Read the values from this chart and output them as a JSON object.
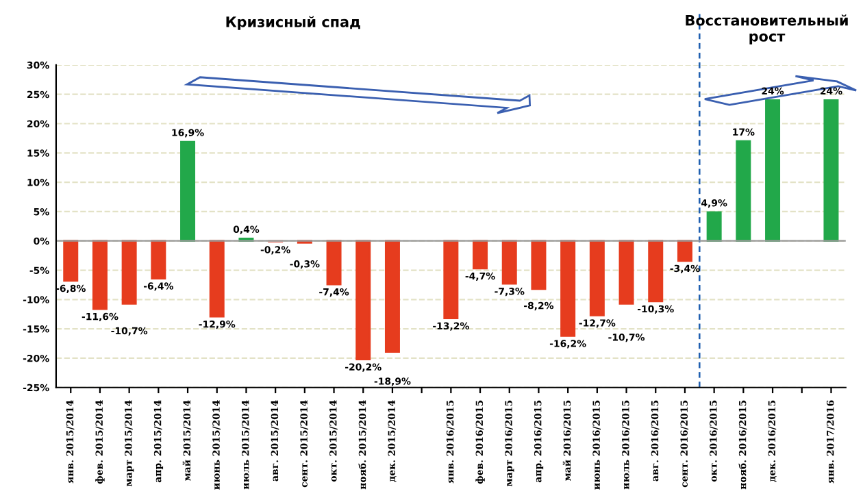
{
  "chart_data": {
    "type": "bar",
    "categories": [
      "янв. 2015/2014",
      "фев. 2015/2014",
      "март 2015/2014",
      "апр. 2015/2014",
      "май 2015/2014",
      "июнь 2015/2014",
      "июль 2015/2014",
      "авг. 2015/2014",
      "сент. 2015/2014",
      "окт. 2015/2014",
      "нояб. 2015/2014",
      "дек. 2015/2014",
      null,
      "янв. 2016/2015",
      "фев. 2016/2015",
      "март 2016/2015",
      "апр. 2016/2015",
      "май 2016/2015",
      "июнь 2016/2015",
      "июль 2016/2015",
      "авг. 2016/2015",
      "сент. 2016/2015",
      "окт. 2016/2015",
      "нояб. 2016/2015",
      "дек. 2016/2015",
      null,
      "янв. 2017/2016"
    ],
    "values": [
      -6.8,
      -11.6,
      -10.7,
      -6.4,
      16.9,
      -12.9,
      0.4,
      -0.2,
      -0.3,
      -7.4,
      -20.2,
      -18.9,
      null,
      -13.2,
      -4.7,
      -7.3,
      -8.2,
      -16.2,
      -12.7,
      -10.7,
      -10.3,
      -3.4,
      4.9,
      17,
      24,
      null,
      24
    ],
    "value_labels": [
      "-6,8%",
      "-11,6%",
      "-10,7%",
      "-6,4%",
      "16,9%",
      "-12,9%",
      "0,4%",
      "-0,2%",
      "-0,3%",
      "-7,4%",
      "-20,2%",
      "-18,9%",
      null,
      "-13,2%",
      "-4,7%",
      "-7,3%",
      "-8,2%",
      "-16,2%",
      "-12,7%",
      "-10,7%",
      "-10,3%",
      "-3,4%",
      "4,9%",
      "17%",
      "24%",
      null,
      "24%"
    ],
    "colors": [
      "#e63c1e",
      "#e63c1e",
      "#e63c1e",
      "#e63c1e",
      "#22a84a",
      "#e63c1e",
      "#22a84a",
      "#f0b0a8",
      "#e63c1e",
      "#e63c1e",
      "#e63c1e",
      "#e63c1e",
      null,
      "#e63c1e",
      "#e63c1e",
      "#e63c1e",
      "#e63c1e",
      "#e63c1e",
      "#e63c1e",
      "#e63c1e",
      "#e63c1e",
      "#e63c1e",
      "#22a84a",
      "#22a84a",
      "#22a84a",
      null,
      "#22a84a"
    ],
    "ylim": [
      -25,
      30
    ],
    "yticks": [
      {
        "value": -25,
        "label": "-25%"
      },
      {
        "value": -20,
        "label": "-20%"
      },
      {
        "value": -15,
        "label": "-15%"
      },
      {
        "value": -10,
        "label": "-10%"
      },
      {
        "value": -5,
        "label": "-5%"
      },
      {
        "value": 0,
        "label": "0%"
      },
      {
        "value": 5,
        "label": "5%"
      },
      {
        "value": 10,
        "label": "10%"
      },
      {
        "value": 15,
        "label": "15%"
      },
      {
        "value": 20,
        "label": "20%"
      },
      {
        "value": 25,
        "label": "25%"
      },
      {
        "value": 30,
        "label": "30%"
      }
    ],
    "grid": "y",
    "annotations": [
      "Кризисный спад",
      "Восстановительный\nрост"
    ]
  }
}
